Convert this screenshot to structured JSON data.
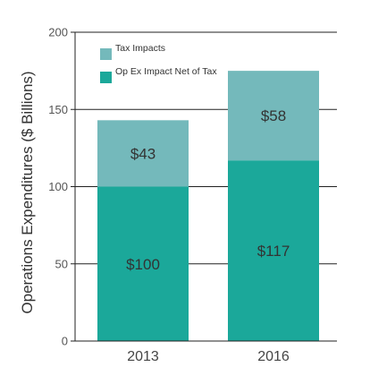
{
  "chart_data": {
    "type": "bar",
    "stacked": true,
    "categories": [
      "2013",
      "2016"
    ],
    "series": [
      {
        "name": "Op Ex Impact Net of Tax",
        "values": [
          100,
          117
        ],
        "labels": [
          "$100",
          "$117"
        ],
        "color": "#1ba89a"
      },
      {
        "name": "Tax Impacts",
        "values": [
          43,
          58
        ],
        "labels": [
          "$43",
          "$58"
        ],
        "color": "#74b9bb"
      }
    ],
    "legend_order": [
      "Tax Impacts",
      "Op Ex Impact Net of Tax"
    ],
    "title": "",
    "xlabel": "",
    "ylabel": "Operations Expenditures ($ Billions)",
    "ylim": [
      0,
      200
    ],
    "yticks": [
      0,
      50,
      100,
      150,
      200
    ],
    "grid": true,
    "legend_position": "top-left"
  }
}
